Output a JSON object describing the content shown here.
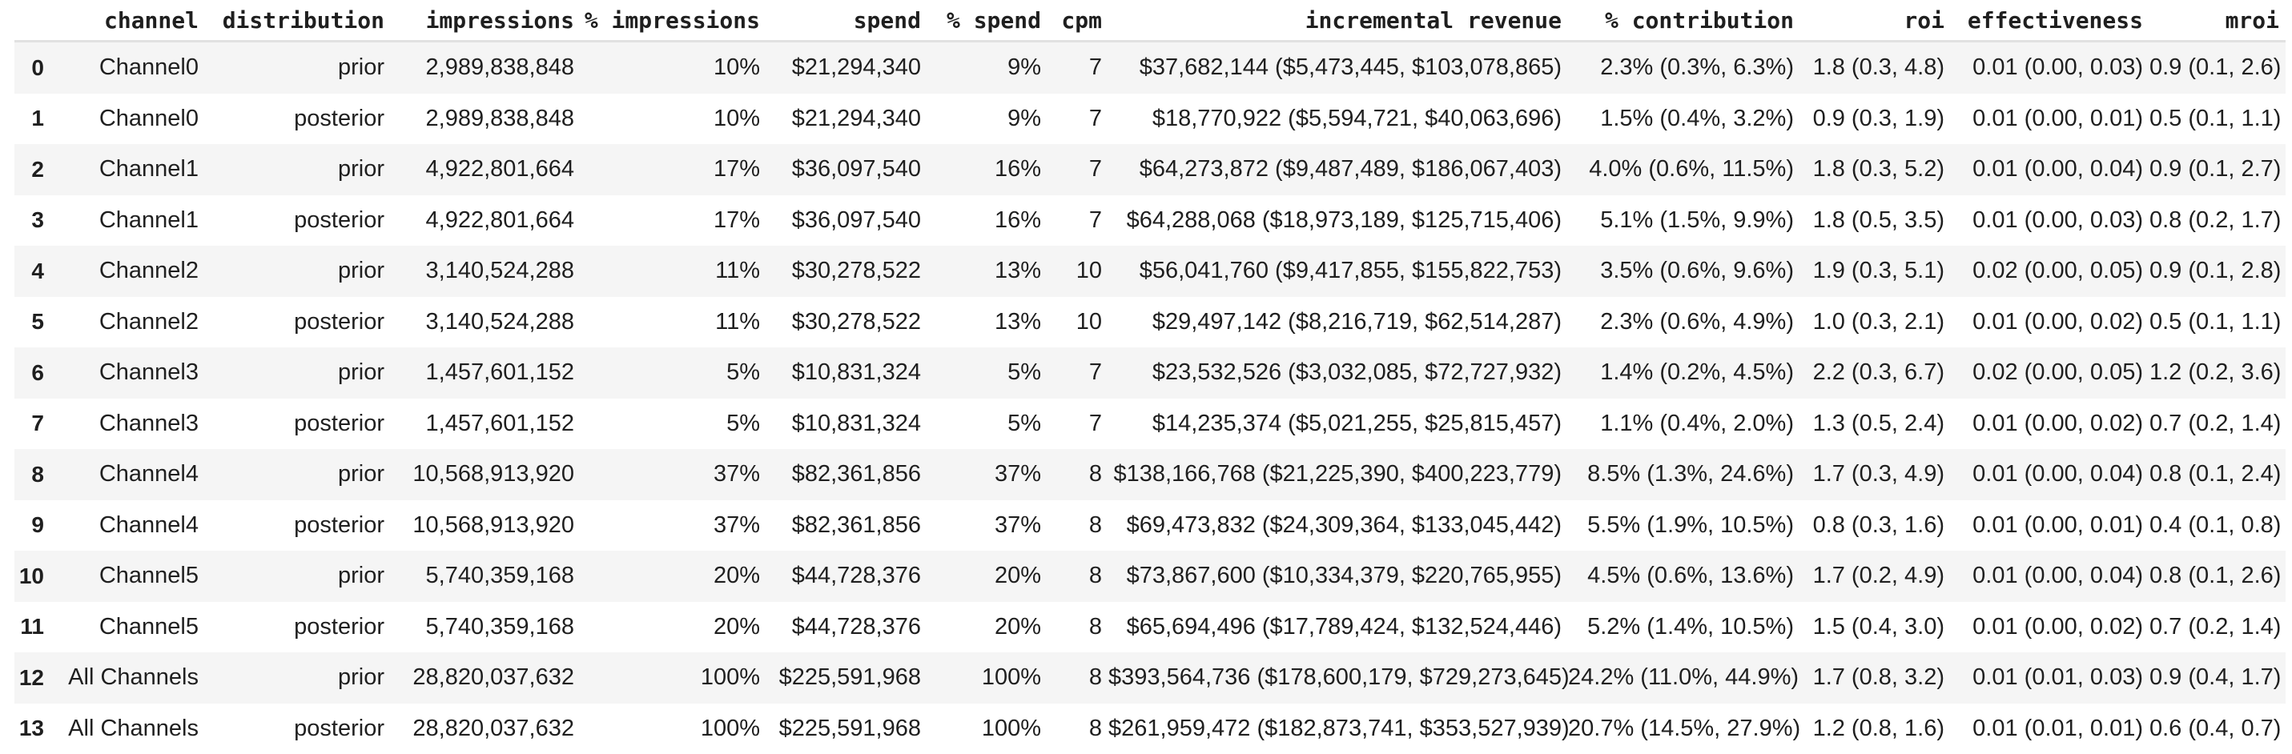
{
  "style": {
    "stripe_color": "#f5f5f5",
    "divider_color": "#e1e1e1",
    "text_color": "#1f1f1f",
    "background_color": "#ffffff"
  },
  "table": {
    "index_header": "",
    "columns": [
      "channel",
      "distribution",
      "impressions",
      "% impressions",
      "spend",
      "% spend",
      "cpm",
      "incremental revenue",
      "% contribution",
      "roi",
      "effectiveness",
      "mroi"
    ],
    "rows": [
      {
        "index": "0",
        "cells": [
          "Channel0",
          "prior",
          "2,989,838,848",
          "10%",
          "$21,294,340",
          "9%",
          "7",
          "$37,682,144 ($5,473,445, $103,078,865)",
          "2.3% (0.3%, 6.3%)",
          "1.8 (0.3, 4.8)",
          "0.01 (0.00, 0.03)",
          "0.9 (0.1, 2.6)"
        ]
      },
      {
        "index": "1",
        "cells": [
          "Channel0",
          "posterior",
          "2,989,838,848",
          "10%",
          "$21,294,340",
          "9%",
          "7",
          "$18,770,922 ($5,594,721, $40,063,696)",
          "1.5% (0.4%, 3.2%)",
          "0.9 (0.3, 1.9)",
          "0.01 (0.00, 0.01)",
          "0.5 (0.1, 1.1)"
        ]
      },
      {
        "index": "2",
        "cells": [
          "Channel1",
          "prior",
          "4,922,801,664",
          "17%",
          "$36,097,540",
          "16%",
          "7",
          "$64,273,872 ($9,487,489, $186,067,403)",
          "4.0% (0.6%, 11.5%)",
          "1.8 (0.3, 5.2)",
          "0.01 (0.00, 0.04)",
          "0.9 (0.1, 2.7)"
        ]
      },
      {
        "index": "3",
        "cells": [
          "Channel1",
          "posterior",
          "4,922,801,664",
          "17%",
          "$36,097,540",
          "16%",
          "7",
          "$64,288,068 ($18,973,189, $125,715,406)",
          "5.1% (1.5%, 9.9%)",
          "1.8 (0.5, 3.5)",
          "0.01 (0.00, 0.03)",
          "0.8 (0.2, 1.7)"
        ]
      },
      {
        "index": "4",
        "cells": [
          "Channel2",
          "prior",
          "3,140,524,288",
          "11%",
          "$30,278,522",
          "13%",
          "10",
          "$56,041,760 ($9,417,855, $155,822,753)",
          "3.5% (0.6%, 9.6%)",
          "1.9 (0.3, 5.1)",
          "0.02 (0.00, 0.05)",
          "0.9 (0.1, 2.8)"
        ]
      },
      {
        "index": "5",
        "cells": [
          "Channel2",
          "posterior",
          "3,140,524,288",
          "11%",
          "$30,278,522",
          "13%",
          "10",
          "$29,497,142 ($8,216,719, $62,514,287)",
          "2.3% (0.6%, 4.9%)",
          "1.0 (0.3, 2.1)",
          "0.01 (0.00, 0.02)",
          "0.5 (0.1, 1.1)"
        ]
      },
      {
        "index": "6",
        "cells": [
          "Channel3",
          "prior",
          "1,457,601,152",
          "5%",
          "$10,831,324",
          "5%",
          "7",
          "$23,532,526 ($3,032,085, $72,727,932)",
          "1.4% (0.2%, 4.5%)",
          "2.2 (0.3, 6.7)",
          "0.02 (0.00, 0.05)",
          "1.2 (0.2, 3.6)"
        ]
      },
      {
        "index": "7",
        "cells": [
          "Channel3",
          "posterior",
          "1,457,601,152",
          "5%",
          "$10,831,324",
          "5%",
          "7",
          "$14,235,374 ($5,021,255, $25,815,457)",
          "1.1% (0.4%, 2.0%)",
          "1.3 (0.5, 2.4)",
          "0.01 (0.00, 0.02)",
          "0.7 (0.2, 1.4)"
        ]
      },
      {
        "index": "8",
        "cells": [
          "Channel4",
          "prior",
          "10,568,913,920",
          "37%",
          "$82,361,856",
          "37%",
          "8",
          "$138,166,768 ($21,225,390, $400,223,779)",
          "8.5% (1.3%, 24.6%)",
          "1.7 (0.3, 4.9)",
          "0.01 (0.00, 0.04)",
          "0.8 (0.1, 2.4)"
        ]
      },
      {
        "index": "9",
        "cells": [
          "Channel4",
          "posterior",
          "10,568,913,920",
          "37%",
          "$82,361,856",
          "37%",
          "8",
          "$69,473,832 ($24,309,364, $133,045,442)",
          "5.5% (1.9%, 10.5%)",
          "0.8 (0.3, 1.6)",
          "0.01 (0.00, 0.01)",
          "0.4 (0.1, 0.8)"
        ]
      },
      {
        "index": "10",
        "cells": [
          "Channel5",
          "prior",
          "5,740,359,168",
          "20%",
          "$44,728,376",
          "20%",
          "8",
          "$73,867,600 ($10,334,379, $220,765,955)",
          "4.5% (0.6%, 13.6%)",
          "1.7 (0.2, 4.9)",
          "0.01 (0.00, 0.04)",
          "0.8 (0.1, 2.6)"
        ]
      },
      {
        "index": "11",
        "cells": [
          "Channel5",
          "posterior",
          "5,740,359,168",
          "20%",
          "$44,728,376",
          "20%",
          "8",
          "$65,694,496 ($17,789,424, $132,524,446)",
          "5.2% (1.4%, 10.5%)",
          "1.5 (0.4, 3.0)",
          "0.01 (0.00, 0.02)",
          "0.7 (0.2, 1.4)"
        ]
      },
      {
        "index": "12",
        "cells": [
          "All Channels",
          "prior",
          "28,820,037,632",
          "100%",
          "$225,591,968",
          "100%",
          "8",
          "$393,564,736 ($178,600,179, $729,273,645)",
          "24.2% (11.0%, 44.9%)",
          "1.7 (0.8, 3.2)",
          "0.01 (0.01, 0.03)",
          "0.9 (0.4, 1.7)"
        ]
      },
      {
        "index": "13",
        "cells": [
          "All Channels",
          "posterior",
          "28,820,037,632",
          "100%",
          "$225,591,968",
          "100%",
          "8",
          "$261,959,472 ($182,873,741, $353,527,939)",
          "20.7% (14.5%, 27.9%)",
          "1.2 (0.8, 1.6)",
          "0.01 (0.01, 0.01)",
          "0.6 (0.4, 0.7)"
        ]
      }
    ]
  }
}
